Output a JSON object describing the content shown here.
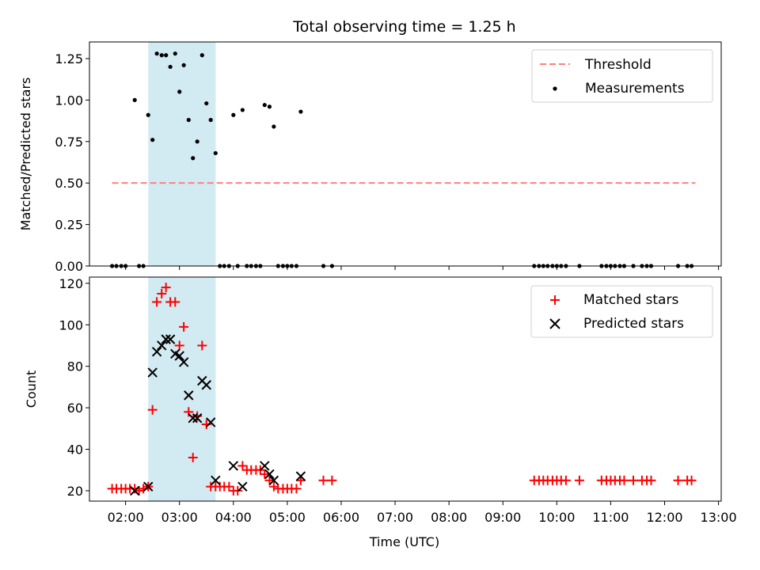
{
  "title": "Total observing time = 1.25 h",
  "colors": {
    "threshold": "#ff7f7f",
    "matched": "#ff0000",
    "predicted": "#000000",
    "measurement": "#000000",
    "span": "#add8e6"
  },
  "chart_data": [
    {
      "type": "scatter",
      "ylabel": "Matched/Predicted stars",
      "xlim": [
        1.33,
        13.05
      ],
      "ylim": [
        0,
        1.35
      ],
      "yticks": [
        0.0,
        0.25,
        0.5,
        0.75,
        1.0,
        1.25
      ],
      "ytick_labels": [
        "0.00",
        "0.25",
        "0.50",
        "0.75",
        "1.00",
        "1.25"
      ],
      "highlight_span": {
        "x0": 2.42,
        "x1": 3.67
      },
      "legend_position": "top-right",
      "legend": {
        "threshold": "Threshold",
        "measurements": "Measurements"
      },
      "threshold": {
        "name": "Threshold",
        "y": 0.5,
        "x": [
          1.75,
          12.57
        ]
      },
      "measurements": {
        "name": "Measurements",
        "x": [
          1.75,
          1.83,
          1.92,
          2.0,
          2.17,
          2.25,
          2.33,
          2.42,
          2.5,
          2.58,
          2.67,
          2.75,
          2.83,
          2.92,
          3.0,
          3.08,
          3.17,
          3.25,
          3.33,
          3.42,
          3.5,
          3.58,
          3.67,
          3.75,
          3.83,
          3.92,
          4.0,
          4.08,
          4.17,
          4.25,
          4.33,
          4.42,
          4.5,
          4.58,
          4.67,
          4.75,
          4.83,
          4.92,
          5.0,
          5.08,
          5.17,
          5.25,
          5.67,
          5.83,
          9.58,
          9.67,
          9.75,
          9.83,
          9.92,
          10.0,
          10.08,
          10.17,
          10.42,
          10.83,
          10.92,
          11.0,
          11.08,
          11.17,
          11.25,
          11.42,
          11.58,
          11.67,
          11.75,
          12.25,
          12.42,
          12.5
        ],
        "y": [
          0,
          0,
          0,
          0,
          1.0,
          0,
          0,
          0.91,
          0.76,
          1.28,
          1.27,
          1.27,
          1.2,
          1.28,
          1.05,
          1.21,
          0.88,
          0.65,
          0.75,
          1.27,
          0.98,
          0.88,
          0.68,
          0,
          0,
          0,
          0.91,
          0,
          0.94,
          0,
          0,
          0,
          0,
          0.97,
          0.96,
          0.84,
          0,
          0,
          0,
          0,
          0,
          0.93,
          0,
          0,
          0,
          0,
          0,
          0,
          0,
          0,
          0,
          0,
          0,
          0,
          0,
          0,
          0,
          0,
          0,
          0,
          0,
          0,
          0,
          0,
          0,
          0
        ]
      }
    },
    {
      "type": "scatter",
      "ylabel": "Count",
      "xlabel": "Time (UTC)",
      "xlim": [
        1.33,
        13.05
      ],
      "ylim": [
        15,
        123
      ],
      "yticks": [
        20,
        40,
        60,
        80,
        100,
        120
      ],
      "ytick_labels": [
        "20",
        "40",
        "60",
        "80",
        "100",
        "120"
      ],
      "xticks": [
        2,
        3,
        4,
        5,
        6,
        7,
        8,
        9,
        10,
        11,
        12,
        13
      ],
      "xtick_labels": [
        "02:00",
        "03:00",
        "04:00",
        "05:00",
        "06:00",
        "07:00",
        "08:00",
        "09:00",
        "10:00",
        "11:00",
        "12:00",
        "13:00"
      ],
      "highlight_span": {
        "x0": 2.42,
        "x1": 3.67
      },
      "legend_position": "top-right",
      "series": [
        {
          "name": "Matched stars",
          "marker": "plus",
          "x": [
            1.75,
            1.83,
            1.92,
            2.0,
            2.08,
            2.17,
            2.25,
            2.33,
            2.42,
            2.5,
            2.58,
            2.67,
            2.75,
            2.83,
            2.92,
            3.0,
            3.08,
            3.17,
            3.25,
            3.33,
            3.42,
            3.5,
            3.58,
            3.67,
            3.75,
            3.83,
            3.92,
            4.0,
            4.08,
            4.17,
            4.25,
            4.33,
            4.42,
            4.5,
            4.58,
            4.67,
            4.75,
            4.83,
            4.92,
            5.0,
            5.08,
            5.17,
            5.25,
            5.67,
            5.83,
            9.58,
            9.67,
            9.75,
            9.83,
            9.92,
            10.0,
            10.08,
            10.17,
            10.42,
            10.83,
            10.92,
            11.0,
            11.08,
            11.17,
            11.25,
            11.42,
            11.58,
            11.67,
            11.75,
            12.25,
            12.42,
            12.5
          ],
          "y": [
            21,
            21,
            21,
            21,
            21,
            21,
            20,
            21,
            22,
            59,
            111,
            115,
            118,
            111,
            111,
            90,
            99,
            58,
            36,
            56,
            90,
            52,
            22,
            22,
            22,
            22,
            22,
            20,
            20,
            32,
            30,
            30,
            30,
            30,
            28,
            25,
            22,
            21,
            21,
            21,
            21,
            21,
            25,
            25,
            25,
            25,
            25,
            25,
            25,
            25,
            25,
            25,
            25,
            25,
            25,
            25,
            25,
            25,
            25,
            25,
            25,
            25,
            25,
            25,
            25,
            25,
            25
          ]
        },
        {
          "name": "Predicted stars",
          "marker": "x",
          "x": [
            2.17,
            2.42,
            2.5,
            2.58,
            2.67,
            2.75,
            2.83,
            2.92,
            3.0,
            3.08,
            3.17,
            3.25,
            3.33,
            3.42,
            3.5,
            3.58,
            3.67,
            4.0,
            4.17,
            4.58,
            4.67,
            4.75,
            5.25
          ],
          "y": [
            20,
            22,
            77,
            87,
            90,
            93,
            93,
            86,
            85,
            82,
            66,
            55,
            55,
            73,
            71,
            53,
            25,
            32,
            22,
            32,
            28,
            25,
            27
          ]
        }
      ]
    }
  ]
}
